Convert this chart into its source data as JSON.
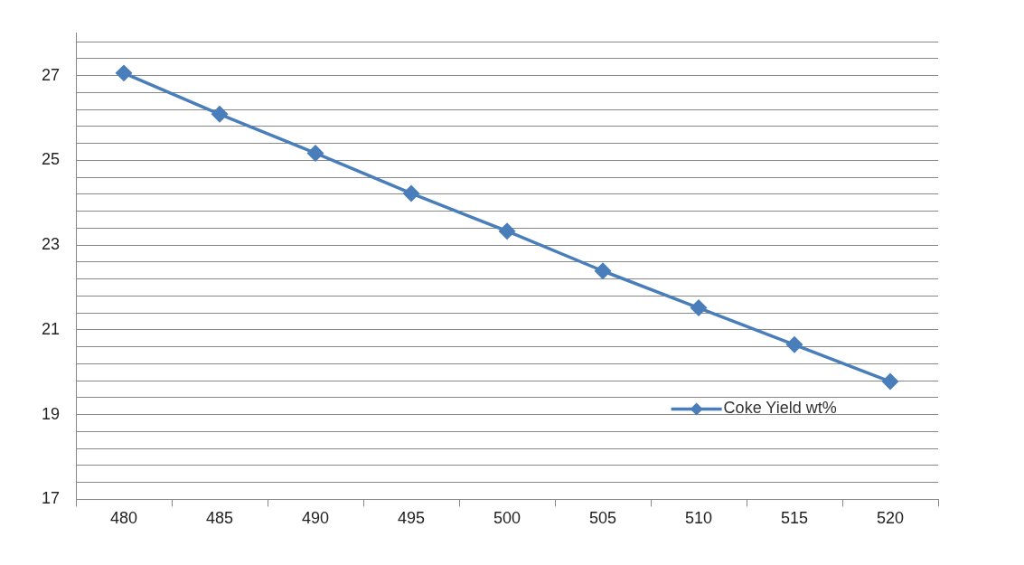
{
  "chart_data": {
    "type": "line",
    "categories": [
      "480",
      "485",
      "490",
      "495",
      "500",
      "505",
      "510",
      "515",
      "520"
    ],
    "series": [
      {
        "name": "Coke Yield wt%",
        "color": "#4a7ebb",
        "values": [
          27.06,
          26.09,
          25.17,
          24.22,
          23.33,
          22.39,
          21.52,
          20.65,
          19.78
        ]
      }
    ],
    "ylim": [
      17,
      28
    ],
    "yticks": [
      17,
      {
        "value": 17.4,
        "label": null
      },
      {
        "value": 17.8,
        "label": null
      },
      {
        "value": 18.2,
        "label": null
      },
      {
        "value": 18.6,
        "label": null
      },
      19,
      {
        "value": 19.4,
        "label": null
      },
      {
        "value": 19.8,
        "label": null
      },
      {
        "value": 20.2,
        "label": null
      },
      {
        "value": 20.6,
        "label": null
      },
      21,
      {
        "value": 21.4,
        "label": null
      },
      {
        "value": 21.8,
        "label": null
      },
      {
        "value": 22.2,
        "label": null
      },
      {
        "value": 22.6,
        "label": null
      },
      23,
      {
        "value": 23.4,
        "label": null
      },
      {
        "value": 23.8,
        "label": null
      },
      {
        "value": 24.2,
        "label": null
      },
      {
        "value": 24.6,
        "label": null
      },
      25,
      {
        "value": 25.4,
        "label": null
      },
      {
        "value": 25.8,
        "label": null
      },
      {
        "value": 26.2,
        "label": null
      },
      {
        "value": 26.6,
        "label": null
      },
      27,
      {
        "value": 27.4,
        "label": null
      },
      {
        "value": 27.8,
        "label": null
      }
    ],
    "grid": "y",
    "legend": "bottom right",
    "marker": "diamond",
    "line_style": "solid"
  }
}
